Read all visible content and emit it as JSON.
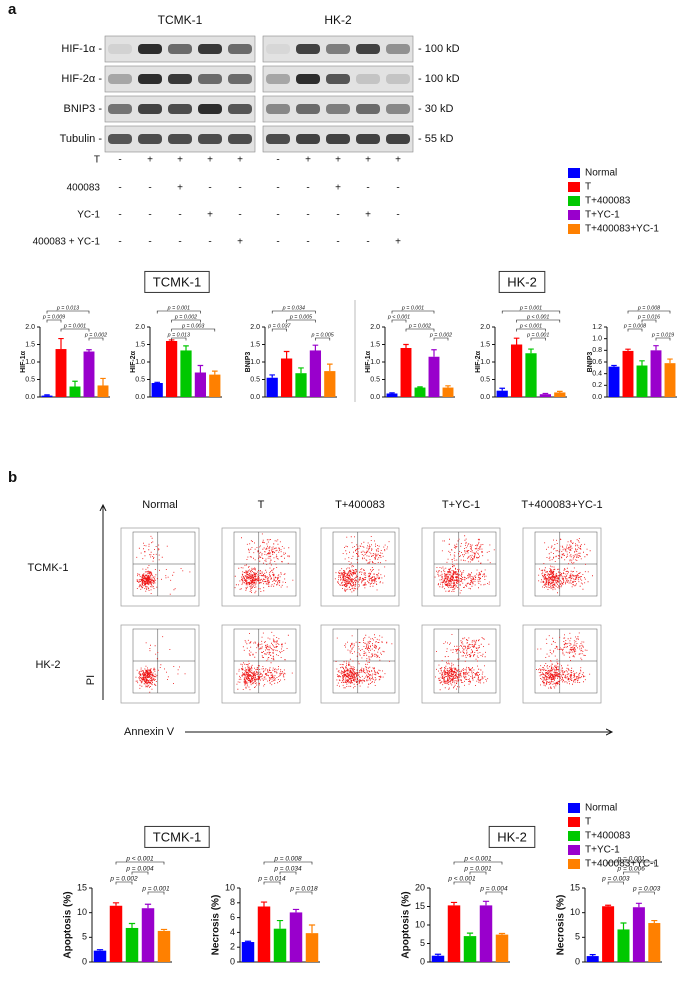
{
  "panel_labels": [
    "a",
    "b"
  ],
  "blot": {
    "cell_lines": [
      "TCMK-1",
      "HK-2"
    ],
    "proteins": [
      "HIF-1α -",
      "HIF-2α -",
      "BNIP3 -",
      "Tubulin -"
    ],
    "sizes": [
      "- 100 kD",
      "- 100 kD",
      "- 30 kD",
      "- 55 kD"
    ]
  },
  "treatments": {
    "rows": [
      {
        "label": "T",
        "cells": [
          "-",
          "+",
          "+",
          "+",
          "+",
          "-",
          "+",
          "+",
          "+",
          "+"
        ]
      },
      {
        "label": "400083",
        "cells": [
          "-",
          "-",
          "+",
          "-",
          "-",
          "-",
          "-",
          "+",
          "-",
          "-"
        ]
      },
      {
        "label": "YC-1",
        "cells": [
          "-",
          "-",
          "-",
          "+",
          "-",
          "-",
          "-",
          "-",
          "+",
          "-"
        ]
      },
      {
        "label": "400083 + YC-1",
        "cells": [
          "-",
          "-",
          "-",
          "-",
          "+",
          "-",
          "-",
          "-",
          "-",
          "+"
        ]
      }
    ]
  },
  "legends": [
    [
      {
        "name": "Normal",
        "color": "#0000ff"
      },
      {
        "name": "T",
        "color": "#ff0000"
      },
      {
        "name": "T+400083",
        "color": "#00c800"
      },
      {
        "name": "T+YC-1",
        "color": "#9900cc"
      },
      {
        "name": "T+400083+YC-1",
        "color": "#ff8000"
      }
    ],
    [
      {
        "name": "Normal",
        "color": "#0000ff"
      },
      {
        "name": "T",
        "color": "#ff0000"
      },
      {
        "name": "T+400083",
        "color": "#00c800"
      },
      {
        "name": "T+YC-1",
        "color": "#9900cc"
      },
      {
        "name": "T+400083+YC-1",
        "color": "#ff8000"
      }
    ]
  ],
  "group_titles": [
    "TCMK-1",
    "HK-2",
    "TCMK-1",
    "HK-2"
  ],
  "flow": {
    "columns": [
      "Normal",
      "T",
      "T+400083",
      "T+YC-1",
      "T+400083+YC-1"
    ],
    "rows": [
      "TCMK-1",
      "HK-2"
    ],
    "y_axis": "PI",
    "x_axis": "Annexin V"
  },
  "chart_data": [
    {
      "type": "bar",
      "ylabel": "HIF-1α",
      "values": [
        0.04,
        1.37,
        0.3,
        1.3,
        0.33
      ],
      "errors": [
        0.02,
        0.3,
        0.15,
        0.05,
        0.2
      ],
      "ylim": [
        0,
        2
      ],
      "yticks": [
        {
          "value": 0,
          "label": "0.0"
        },
        0.5,
        {
          "value": 1,
          "label": "1.0"
        },
        1.5,
        {
          "value": 2,
          "label": "2.0"
        }
      ],
      "annotations": [
        {
          "label": "p = 0.013",
          "between": [
            0,
            3
          ]
        },
        {
          "label": "p = 0.009",
          "between": [
            0,
            1
          ]
        },
        {
          "label": "p = 0.001",
          "between": [
            1,
            3
          ]
        },
        {
          "label": "p = 0.002",
          "between": [
            3,
            4
          ]
        }
      ]
    },
    {
      "type": "bar",
      "ylabel": "HIF-2α",
      "values": [
        0.4,
        1.6,
        1.33,
        0.7,
        0.64
      ],
      "errors": [
        0.02,
        0.03,
        0.13,
        0.2,
        0.1
      ],
      "ylim": [
        0,
        2
      ],
      "yticks": [
        {
          "value": 0,
          "label": "0.0"
        },
        0.5,
        {
          "value": 1,
          "label": "1.0"
        },
        1.5,
        {
          "value": 2,
          "label": "2.0"
        }
      ],
      "annotations": [
        {
          "label": "p = 0.001",
          "between": [
            0,
            3
          ]
        },
        {
          "label": "p = 0.002",
          "between": [
            1,
            3
          ]
        },
        {
          "label": "p = 0.003",
          "between": [
            1,
            4
          ]
        },
        {
          "label": "p = 0.013",
          "between": [
            1,
            2
          ]
        }
      ]
    },
    {
      "type": "bar",
      "ylabel": "BNIP3",
      "values": [
        0.55,
        1.1,
        0.68,
        1.33,
        0.74
      ],
      "errors": [
        0.08,
        0.2,
        0.15,
        0.15,
        0.2
      ],
      "ylim": [
        0,
        2
      ],
      "yticks": [
        {
          "value": 0,
          "label": "0.0"
        },
        0.5,
        {
          "value": 1,
          "label": "1.0"
        },
        1.5,
        {
          "value": 2,
          "label": "2.0"
        }
      ],
      "annotations": [
        {
          "label": "p = 0.034",
          "between": [
            0,
            3
          ]
        },
        {
          "label": "p = 0.005",
          "between": [
            1,
            3
          ]
        },
        {
          "label": "p = 0.037",
          "between": [
            0,
            1
          ]
        },
        {
          "label": "p = 0.005",
          "between": [
            3,
            4
          ]
        }
      ]
    },
    {
      "type": "bar",
      "ylabel": "HIF-1α",
      "values": [
        0.1,
        1.4,
        0.27,
        1.15,
        0.27
      ],
      "errors": [
        0.02,
        0.1,
        0.02,
        0.2,
        0.05
      ],
      "ylim": [
        0,
        2
      ],
      "yticks": [
        {
          "value": 0,
          "label": "0.0"
        },
        0.5,
        {
          "value": 1,
          "label": "1.0"
        },
        1.5,
        {
          "value": 2,
          "label": "2.0"
        }
      ],
      "annotations": [
        {
          "label": "p = 0.001",
          "between": [
            0,
            3
          ]
        },
        {
          "label": "p < 0.001",
          "between": [
            0,
            1
          ]
        },
        {
          "label": "p = 0.002",
          "between": [
            1,
            3
          ]
        },
        {
          "label": "p = 0.002",
          "between": [
            3,
            4
          ]
        }
      ]
    },
    {
      "type": "bar",
      "ylabel": "HIF-2α",
      "values": [
        0.18,
        1.5,
        1.25,
        0.08,
        0.13
      ],
      "errors": [
        0.07,
        0.18,
        0.12,
        0.02,
        0.03
      ],
      "ylim": [
        0,
        2
      ],
      "yticks": [
        {
          "value": 0,
          "label": "0.0"
        },
        0.5,
        {
          "value": 1,
          "label": "1.0"
        },
        1.5,
        {
          "value": 2,
          "label": "2.0"
        }
      ],
      "annotations": [
        {
          "label": "p = 0.001",
          "between": [
            0,
            4
          ]
        },
        {
          "label": "p < 0.001",
          "between": [
            1,
            4
          ]
        },
        {
          "label": "p < 0.001",
          "between": [
            1,
            3
          ]
        },
        {
          "label": "p = 0.001",
          "between": [
            2,
            3
          ]
        }
      ]
    },
    {
      "type": "bar",
      "ylabel": "BNIP3",
      "values": [
        0.52,
        0.79,
        0.54,
        0.8,
        0.58
      ],
      "errors": [
        0.02,
        0.03,
        0.08,
        0.08,
        0.07
      ],
      "ylim": [
        0,
        1.2
      ],
      "yticks": [
        {
          "value": 0,
          "label": "0.0"
        },
        0.2,
        0.4,
        0.6,
        0.8,
        {
          "value": 1,
          "label": "1.0"
        },
        1.2
      ],
      "annotations": [
        {
          "label": "p = 0.008",
          "between": [
            1,
            4
          ]
        },
        {
          "label": "p = 0.016",
          "between": [
            2,
            3
          ]
        },
        {
          "label": "p = 0.008",
          "between": [
            1,
            2
          ]
        },
        {
          "label": "p = 0.019",
          "between": [
            3,
            4
          ]
        }
      ]
    },
    {
      "type": "bar",
      "ylabel": "Apoptosis (%)",
      "values": [
        2.3,
        11.4,
        6.9,
        10.9,
        6.3
      ],
      "errors": [
        0.2,
        0.6,
        0.9,
        0.8,
        0.3
      ],
      "ylim": [
        0,
        15
      ],
      "yticks": [
        0,
        5,
        10,
        15
      ],
      "annotations": [
        {
          "label": "p < 0.001",
          "between": [
            1,
            4
          ]
        },
        {
          "label": "p = 0.004",
          "between": [
            2,
            3
          ]
        },
        {
          "label": "p = 0.002",
          "between": [
            1,
            2
          ]
        },
        {
          "label": "p = 0.001",
          "between": [
            3,
            4
          ]
        }
      ]
    },
    {
      "type": "bar",
      "ylabel": "Necrosis (%)",
      "values": [
        2.7,
        7.5,
        4.5,
        6.7,
        3.9
      ],
      "errors": [
        0.1,
        0.6,
        1.1,
        0.4,
        1.1
      ],
      "ylim": [
        0,
        10
      ],
      "yticks": [
        0,
        2,
        4,
        6,
        8,
        10
      ],
      "annotations": [
        {
          "label": "p = 0.008",
          "between": [
            1,
            4
          ]
        },
        {
          "label": "p = 0.034",
          "between": [
            2,
            3
          ]
        },
        {
          "label": "p = 0.014",
          "between": [
            1,
            2
          ]
        },
        {
          "label": "p = 0.018",
          "between": [
            3,
            4
          ]
        }
      ]
    },
    {
      "type": "bar",
      "ylabel": "Apoptosis (%)",
      "values": [
        1.7,
        15.3,
        7.0,
        15.3,
        7.4
      ],
      "errors": [
        0.4,
        0.8,
        0.8,
        1.1,
        0.3
      ],
      "ylim": [
        0,
        20
      ],
      "yticks": [
        0,
        5,
        10,
        15,
        20
      ],
      "annotations": [
        {
          "label": "p < 0.001",
          "between": [
            1,
            4
          ]
        },
        {
          "label": "p = 0.001",
          "between": [
            2,
            3
          ]
        },
        {
          "label": "p < 0.001",
          "between": [
            1,
            2
          ]
        },
        {
          "label": "p = 0.004",
          "between": [
            3,
            4
          ]
        }
      ]
    },
    {
      "type": "bar",
      "ylabel": "Necrosis (%)",
      "values": [
        1.2,
        11.3,
        6.6,
        11.1,
        7.9
      ],
      "errors": [
        0.3,
        0.2,
        1.3,
        0.8,
        0.5
      ],
      "ylim": [
        0,
        15
      ],
      "yticks": [
        0,
        5,
        10,
        15
      ],
      "annotations": [
        {
          "label": "p = 0.001",
          "between": [
            1,
            4
          ]
        },
        {
          "label": "p = 0.006",
          "between": [
            2,
            3
          ]
        },
        {
          "label": "p = 0.003",
          "between": [
            1,
            2
          ]
        },
        {
          "label": "p = 0.003",
          "between": [
            3,
            4
          ]
        }
      ]
    }
  ]
}
